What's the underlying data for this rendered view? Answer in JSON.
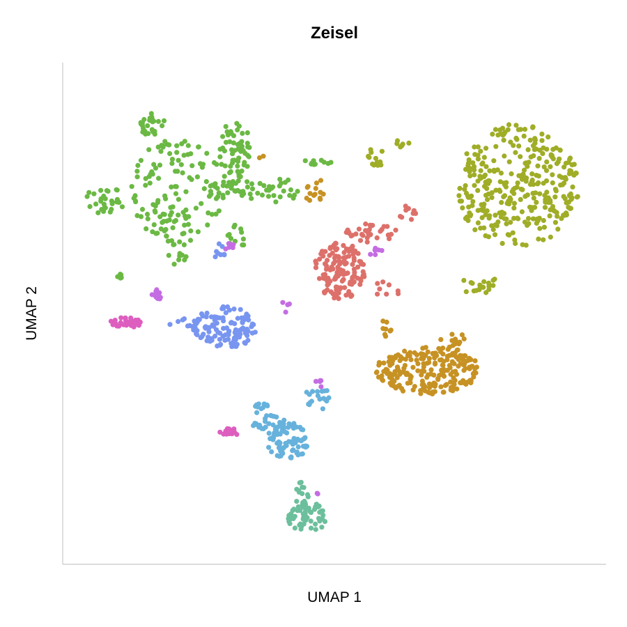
{
  "chart_data": {
    "type": "scatter",
    "title": "Zeisel",
    "xlabel": "UMAP 1",
    "ylabel": "UMAP 2",
    "xlim": [
      0,
      100
    ],
    "ylim": [
      0,
      100
    ],
    "grid": false,
    "legend": "none",
    "ticks": "none",
    "series": [
      {
        "color": "#6bb944",
        "clusters": [
          {
            "cx": 20,
            "cy": 76,
            "rx": 9,
            "ry": 11,
            "n": 130
          },
          {
            "cx": 15,
            "cy": 90,
            "rx": 2.5,
            "ry": 2.5,
            "n": 25
          },
          {
            "cx": 31,
            "cy": 84,
            "rx": 3,
            "ry": 7,
            "n": 60
          },
          {
            "cx": 6,
            "cy": 74,
            "rx": 4,
            "ry": 3,
            "n": 30
          },
          {
            "cx": 32,
            "cy": 76,
            "rx": 7,
            "ry": 2,
            "n": 35
          },
          {
            "cx": 40,
            "cy": 76,
            "rx": 3,
            "ry": 3,
            "n": 18
          },
          {
            "cx": 47,
            "cy": 82,
            "rx": 3,
            "ry": 0.6,
            "n": 10
          },
          {
            "cx": 31,
            "cy": 66,
            "rx": 2,
            "ry": 3,
            "n": 12
          },
          {
            "cx": 20,
            "cy": 63,
            "rx": 2,
            "ry": 3,
            "n": 12
          },
          {
            "cx": 9,
            "cy": 58,
            "rx": 0.5,
            "ry": 1,
            "n": 5
          }
        ]
      },
      {
        "color": "#9fad27",
        "clusters": [
          {
            "cx": 85,
            "cy": 77,
            "rx": 12,
            "ry": 13,
            "n": 330
          },
          {
            "cx": 78,
            "cy": 56,
            "rx": 4,
            "ry": 2,
            "n": 20
          },
          {
            "cx": 58,
            "cy": 83,
            "rx": 2,
            "ry": 2,
            "n": 14
          },
          {
            "cx": 62,
            "cy": 86,
            "rx": 3,
            "ry": 1,
            "n": 6
          }
        ]
      },
      {
        "color": "#dd706a",
        "clusters": [
          {
            "cx": 51,
            "cy": 59,
            "rx": 5,
            "ry": 6,
            "n": 140
          },
          {
            "cx": 57,
            "cy": 67,
            "rx": 5,
            "ry": 2,
            "n": 35
          },
          {
            "cx": 64,
            "cy": 71,
            "rx": 2,
            "ry": 2,
            "n": 10
          },
          {
            "cx": 60,
            "cy": 55,
            "rx": 2.5,
            "ry": 2,
            "n": 8
          }
        ]
      },
      {
        "color": "#c79224",
        "clusters": [
          {
            "cx": 68,
            "cy": 38,
            "rx": 10,
            "ry": 5,
            "n": 220
          },
          {
            "cx": 73,
            "cy": 44,
            "rx": 3,
            "ry": 2,
            "n": 15
          },
          {
            "cx": 46,
            "cy": 76,
            "rx": 2,
            "ry": 3,
            "n": 14
          },
          {
            "cx": 60,
            "cy": 47,
            "rx": 1,
            "ry": 2,
            "n": 8
          },
          {
            "cx": 36,
            "cy": 83,
            "rx": 0.5,
            "ry": 0.5,
            "n": 2
          }
        ]
      },
      {
        "color": "#7895f0",
        "clusters": [
          {
            "cx": 29,
            "cy": 47,
            "rx": 6,
            "ry": 4.5,
            "n": 120
          },
          {
            "cx": 21,
            "cy": 48,
            "rx": 3,
            "ry": 1,
            "n": 10
          },
          {
            "cx": 28,
            "cy": 63,
            "rx": 1,
            "ry": 2,
            "n": 8
          }
        ]
      },
      {
        "color": "#66b2dc",
        "clusters": [
          {
            "cx": 41,
            "cy": 23,
            "rx": 4,
            "ry": 4,
            "n": 80
          },
          {
            "cx": 38,
            "cy": 27,
            "rx": 4,
            "ry": 1.5,
            "n": 25
          },
          {
            "cx": 47,
            "cy": 32,
            "rx": 3,
            "ry": 2.5,
            "n": 20
          },
          {
            "cx": 36,
            "cy": 30,
            "rx": 1.5,
            "ry": 1.5,
            "n": 10
          }
        ]
      },
      {
        "color": "#6cbf9c",
        "clusters": [
          {
            "cx": 45,
            "cy": 7,
            "rx": 4,
            "ry": 3,
            "n": 55
          },
          {
            "cx": 44,
            "cy": 12,
            "rx": 1.5,
            "ry": 3,
            "n": 15
          }
        ]
      },
      {
        "color": "#dd5ebf",
        "clusters": [
          {
            "cx": 10,
            "cy": 48,
            "rx": 3,
            "ry": 1.2,
            "n": 35
          },
          {
            "cx": 30,
            "cy": 25,
            "rx": 2,
            "ry": 0.7,
            "n": 14
          }
        ]
      },
      {
        "color": "#c46de3",
        "clusters": [
          {
            "cx": 16,
            "cy": 54,
            "rx": 1,
            "ry": 1.2,
            "n": 12
          },
          {
            "cx": 30,
            "cy": 64,
            "rx": 1,
            "ry": 0.8,
            "n": 6
          },
          {
            "cx": 47,
            "cy": 35,
            "rx": 0.8,
            "ry": 1,
            "n": 5
          },
          {
            "cx": 58,
            "cy": 63,
            "rx": 1.5,
            "ry": 1,
            "n": 6
          },
          {
            "cx": 40,
            "cy": 51,
            "rx": 2,
            "ry": 1.5,
            "n": 4
          },
          {
            "cx": 47,
            "cy": 12,
            "rx": 0.5,
            "ry": 0.5,
            "n": 2
          }
        ]
      }
    ]
  }
}
